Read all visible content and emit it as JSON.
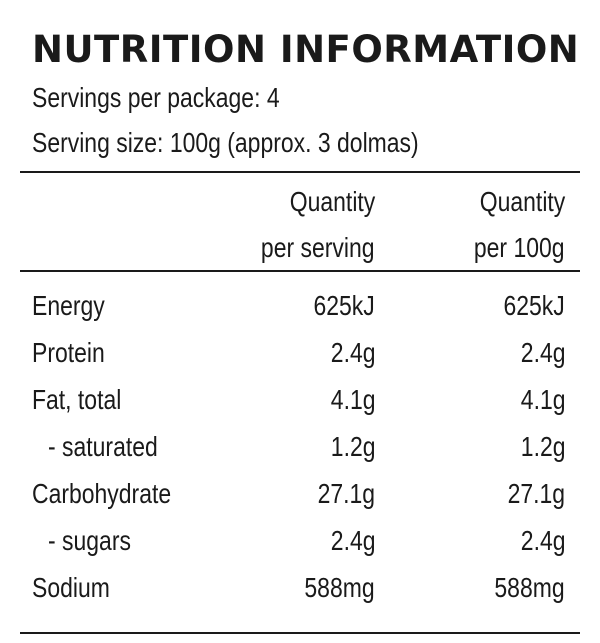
{
  "title": "NUTRITION INFORMATION",
  "servings_per_package": "Servings per package: 4",
  "serving_size": "Serving size: 100g (approx. 3 dolmas)",
  "columns": {
    "per_serving": [
      "Quantity",
      "per serving"
    ],
    "per_100g": [
      "Quantity",
      "per 100g"
    ]
  },
  "rows": [
    {
      "label": "Energy",
      "per_serving": "625kJ",
      "per_100g": "625kJ"
    },
    {
      "label": "Protein",
      "per_serving": "2.4g",
      "per_100g": "2.4g"
    },
    {
      "label": "Fat, total",
      "per_serving": "4.1g",
      "per_100g": "4.1g"
    },
    {
      "label": "- saturated",
      "per_serving": "1.2g",
      "per_100g": "1.2g"
    },
    {
      "label": "Carbohydrate",
      "per_serving": "27.1g",
      "per_100g": "27.1g"
    },
    {
      "label": "- sugars",
      "per_serving": "2.4g",
      "per_100g": "2.4g"
    },
    {
      "label": "Sodium",
      "per_serving": "588mg",
      "per_100g": "588mg"
    }
  ]
}
